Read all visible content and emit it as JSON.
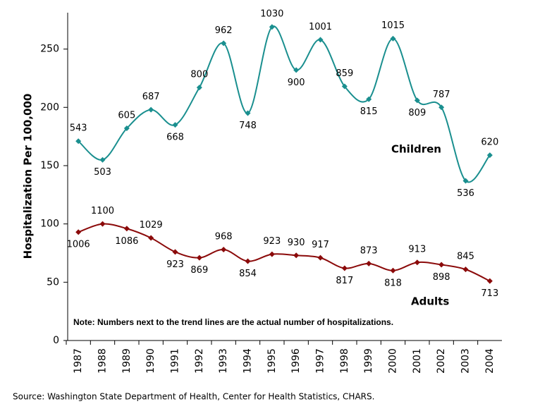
{
  "chart_data": {
    "type": "line",
    "ylabel": "Hospitalization Per 100,000",
    "categories": [
      "1987",
      "1988",
      "1989",
      "1990",
      "1991",
      "1992",
      "1993",
      "1994",
      "1995",
      "1996",
      "1997",
      "1998",
      "1999",
      "2000",
      "2001",
      "2002",
      "2003",
      "2004"
    ],
    "series": [
      {
        "name": "Children",
        "color": "#1a8f8f",
        "values": [
          171,
          155,
          182,
          198,
          185,
          217,
          255,
          195,
          269,
          232,
          258,
          218,
          207,
          259,
          206,
          200,
          137,
          159
        ],
        "counts": [
          543,
          503,
          605,
          687,
          668,
          800,
          962,
          748,
          1030,
          900,
          1001,
          859,
          815,
          1015,
          809,
          787,
          536,
          620
        ]
      },
      {
        "name": "Adults",
        "color": "#8b0a0a",
        "values": [
          93,
          100,
          96,
          88,
          76,
          71,
          78,
          68,
          74,
          73,
          71,
          62,
          66,
          60,
          67,
          65,
          61,
          51
        ],
        "counts": [
          1006,
          1100,
          1086,
          1029,
          923,
          869,
          968,
          854,
          923,
          930,
          917,
          817,
          873,
          818,
          913,
          898,
          845,
          713
        ]
      }
    ],
    "ylim": [
      0,
      280
    ],
    "yticks": [
      0,
      50,
      100,
      150,
      200,
      250
    ],
    "note": "Note: Numbers next to the trend lines are the actual number of hospitalizations.",
    "source": "Source: Washington State Department of Health, Center for Health Statistics, CHARS."
  }
}
